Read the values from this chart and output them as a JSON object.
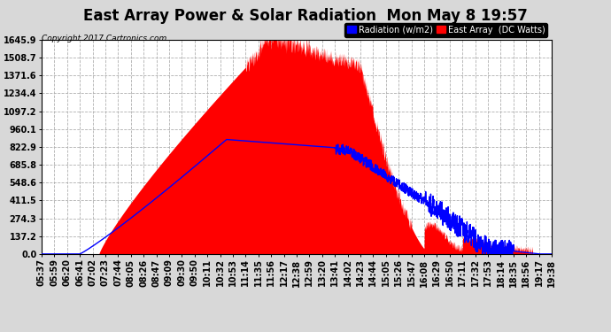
{
  "title": "East Array Power & Solar Radiation  Mon May 8 19:57",
  "copyright": "Copyright 2017 Cartronics.com",
  "legend_labels": [
    "Radiation (w/m2)",
    "East Array  (DC Watts)"
  ],
  "y_ticks": [
    0.0,
    137.2,
    274.3,
    411.5,
    548.6,
    685.8,
    822.9,
    960.1,
    1097.2,
    1234.4,
    1371.6,
    1508.7,
    1645.9
  ],
  "y_max": 1645.9,
  "y_min": 0.0,
  "x_tick_labels": [
    "05:37",
    "05:59",
    "06:20",
    "06:41",
    "07:02",
    "07:23",
    "07:44",
    "08:05",
    "08:26",
    "08:47",
    "09:09",
    "09:30",
    "09:50",
    "10:11",
    "10:32",
    "10:53",
    "11:14",
    "11:35",
    "11:56",
    "12:17",
    "12:38",
    "12:59",
    "13:20",
    "13:41",
    "14:02",
    "14:23",
    "14:44",
    "15:05",
    "15:26",
    "15:47",
    "16:08",
    "16:29",
    "16:50",
    "17:11",
    "17:32",
    "17:53",
    "18:14",
    "18:35",
    "18:56",
    "19:17",
    "19:38"
  ],
  "bg_color": "#d8d8d8",
  "plot_bg_color": "#ffffff",
  "grid_color": "#b0b0b0",
  "title_fontsize": 12,
  "tick_fontsize": 7.0,
  "east_peak": 1645.9,
  "rad_peak": 880.0,
  "n_ticks": 41
}
